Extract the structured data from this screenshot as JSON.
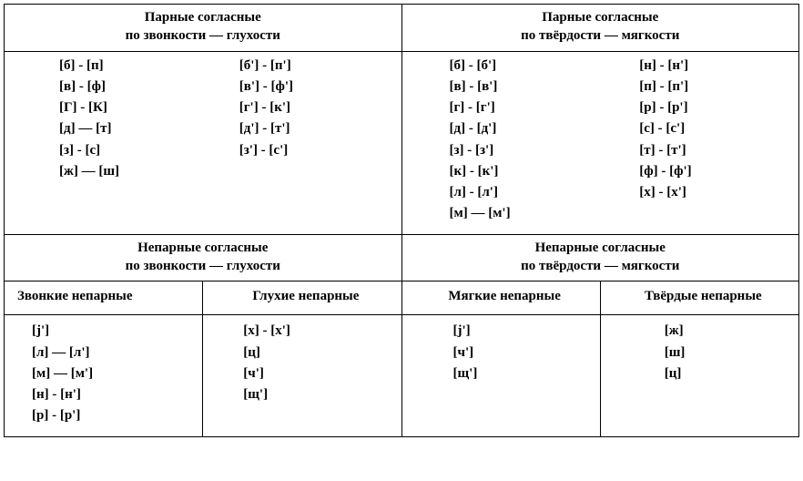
{
  "top": {
    "left": {
      "title1": "Парные согласные",
      "title2": "по звонкости — глухости",
      "colA": [
        "[б] - [п]",
        "[в] - [ф]",
        "[Г] - [К]",
        "[д] — [т]",
        "[з] - [с]",
        "[ж] — [ш]"
      ],
      "colB": [
        "[б'] - [п']",
        "[в'] - [ф']",
        "[г'] - [к']",
        "[д'] - [т']",
        "[з'] - [с']"
      ]
    },
    "right": {
      "title1": "Парные согласные",
      "title2": "по твёрдости — мягкости",
      "colA": [
        "[б] - [б']",
        "[в] - [в']",
        "[г] - [г']",
        "[д] - [д']",
        "[з] - [з']",
        "[к] - [к']",
        "[л] - [л']",
        "[м] — [м']"
      ],
      "colB": [
        "[н] - [н']",
        "[п] - [п']",
        "[р] - [р']",
        "[с] - [с']",
        "[т] - [т']",
        "[ф] - [ф']",
        "[х] - [х']"
      ]
    }
  },
  "bottom": {
    "left": {
      "title1": "Непарные согласные",
      "title2": "по звонкости — глухости",
      "sub1": "Звонкие непарные",
      "sub2": "Глухие непарные",
      "list1": [
        "[j']",
        "[л] — [л']",
        "[м] — [м']",
        "[н] - [н']",
        "[р] - [р']"
      ],
      "list2": [
        "[х] - [х']",
        "[ц]",
        "[ч']",
        "[щ']"
      ]
    },
    "right": {
      "title1": "Непарные согласные",
      "title2": "по твёрдости — мягкости",
      "sub1": "Мягкие непарные",
      "sub2": "Твёрдые непарные",
      "list1": [
        "[j']",
        "[ч']",
        "[щ']"
      ],
      "list2": [
        "[ж]",
        "[ш]",
        "[ц]"
      ]
    }
  }
}
